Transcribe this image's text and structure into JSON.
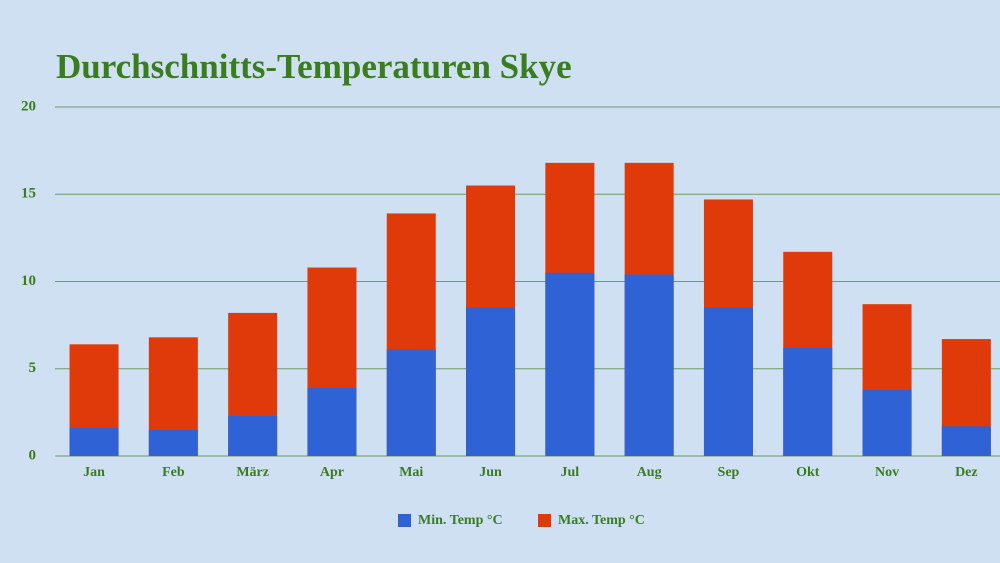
{
  "chart_data": {
    "type": "bar",
    "title": "Durchschnitts-Temperaturen Skye",
    "categories": [
      "Jan",
      "Feb",
      "März",
      "Apr",
      "Mai",
      "Jun",
      "Jul",
      "Aug",
      "Sep",
      "Okt",
      "Nov",
      "Dez"
    ],
    "series": [
      {
        "name": "Max. Temp °C",
        "color": "#e03a0a",
        "values": [
          6.4,
          6.8,
          8.2,
          10.8,
          13.9,
          15.5,
          16.8,
          16.8,
          14.7,
          11.7,
          8.7,
          6.7
        ]
      },
      {
        "name": "Min. Temp °C",
        "color": "#2f62d4",
        "values": [
          1.6,
          1.5,
          2.3,
          3.9,
          6.1,
          8.5,
          10.5,
          10.4,
          8.5,
          6.2,
          3.8,
          1.7
        ]
      }
    ],
    "ylim": [
      0,
      20
    ],
    "yticks": [
      0,
      5,
      10,
      15,
      20
    ],
    "grid": true
  }
}
